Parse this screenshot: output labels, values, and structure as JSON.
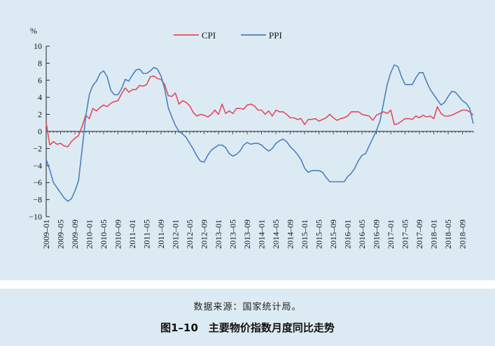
{
  "chart_data": {
    "type": "line",
    "y_unit": "%",
    "ylim": [
      -10,
      10
    ],
    "y_ticks": [
      10,
      8,
      6,
      4,
      2,
      0,
      -2,
      -4,
      -6,
      -8,
      -10
    ],
    "y_tick_labels": [
      "10",
      "8",
      "6",
      "4",
      "2",
      "0",
      "−2",
      "−4",
      "−6",
      "−8",
      "−10"
    ],
    "x_tick_labels": [
      "2009–01",
      "2009–05",
      "2009–09",
      "2010–01",
      "2010–05",
      "2010–09",
      "2011–01",
      "2011–05",
      "2011–09",
      "2012–01",
      "2012–05",
      "2012–09",
      "2013–01",
      "2013–05",
      "2013–09",
      "2014–01",
      "2014–05",
      "2014–09",
      "2015–01",
      "2015–05",
      "2015–09",
      "2016–01",
      "2016–05",
      "2016–09",
      "2017–01",
      "2017–05",
      "2017–09",
      "2018–01",
      "2018–05",
      "2018–09"
    ],
    "x_start": "2009-01",
    "x_end": "2018-12",
    "legend_position": "top",
    "series": [
      {
        "name": "CPI",
        "color": "#e8485a",
        "values": [
          1.0,
          -1.6,
          -1.2,
          -1.5,
          -1.4,
          -1.7,
          -1.8,
          -1.2,
          -0.8,
          -0.5,
          0.6,
          1.9,
          1.5,
          2.7,
          2.4,
          2.8,
          3.1,
          2.9,
          3.3,
          3.5,
          3.6,
          4.4,
          5.1,
          4.6,
          4.9,
          4.9,
          5.4,
          5.3,
          5.5,
          6.4,
          6.5,
          6.2,
          6.1,
          5.5,
          4.2,
          4.1,
          4.5,
          3.2,
          3.6,
          3.4,
          3.0,
          2.2,
          1.8,
          2.0,
          1.9,
          1.7,
          2.0,
          2.5,
          2.0,
          3.2,
          2.1,
          2.4,
          2.1,
          2.7,
          2.7,
          2.6,
          3.1,
          3.2,
          3.0,
          2.5,
          2.5,
          2.0,
          2.4,
          1.8,
          2.5,
          2.3,
          2.3,
          2.0,
          1.6,
          1.6,
          1.4,
          1.5,
          0.8,
          1.4,
          1.4,
          1.5,
          1.2,
          1.4,
          1.6,
          2.0,
          1.6,
          1.3,
          1.5,
          1.6,
          1.8,
          2.3,
          2.3,
          2.3,
          2.0,
          1.9,
          1.8,
          1.3,
          1.9,
          2.1,
          2.3,
          2.1,
          2.5,
          0.8,
          0.9,
          1.2,
          1.5,
          1.5,
          1.4,
          1.8,
          1.6,
          1.9,
          1.7,
          1.8,
          1.5,
          2.9,
          2.1,
          1.8,
          1.8,
          1.9,
          2.1,
          2.3,
          2.5,
          2.5,
          2.3,
          1.9
        ]
      },
      {
        "name": "PPI",
        "color": "#4a7fc1",
        "values": [
          -3.3,
          -4.5,
          -6.0,
          -6.6,
          -7.2,
          -7.8,
          -8.2,
          -7.9,
          -7.0,
          -5.8,
          -2.1,
          1.7,
          4.3,
          5.4,
          5.9,
          6.8,
          7.1,
          6.4,
          4.8,
          4.3,
          4.3,
          5.0,
          6.1,
          5.9,
          6.6,
          7.2,
          7.3,
          6.8,
          6.8,
          7.1,
          7.5,
          7.3,
          6.5,
          5.0,
          2.8,
          1.7,
          0.7,
          0.0,
          -0.3,
          -0.7,
          -1.4,
          -2.1,
          -2.9,
          -3.5,
          -3.6,
          -2.8,
          -2.2,
          -1.9,
          -1.6,
          -1.6,
          -1.9,
          -2.6,
          -2.9,
          -2.7,
          -2.3,
          -1.6,
          -1.3,
          -1.5,
          -1.4,
          -1.4,
          -1.6,
          -2.0,
          -2.3,
          -2.0,
          -1.4,
          -1.1,
          -0.9,
          -1.2,
          -1.8,
          -2.2,
          -2.7,
          -3.3,
          -4.3,
          -4.8,
          -4.6,
          -4.6,
          -4.6,
          -4.8,
          -5.4,
          -5.9,
          -5.9,
          -5.9,
          -5.9,
          -5.9,
          -5.3,
          -4.9,
          -4.3,
          -3.4,
          -2.8,
          -2.6,
          -1.7,
          -0.8,
          0.1,
          1.2,
          3.3,
          5.5,
          6.9,
          7.8,
          7.6,
          6.4,
          5.5,
          5.5,
          5.5,
          6.3,
          6.9,
          6.9,
          5.8,
          4.9,
          4.3,
          3.7,
          3.1,
          3.4,
          4.1,
          4.7,
          4.6,
          4.1,
          3.6,
          3.3,
          2.7,
          0.9
        ]
      }
    ]
  },
  "caption": {
    "source": "数据来源：国家统计局。",
    "title": "图1–10　主要物价指数月度同比走势"
  }
}
